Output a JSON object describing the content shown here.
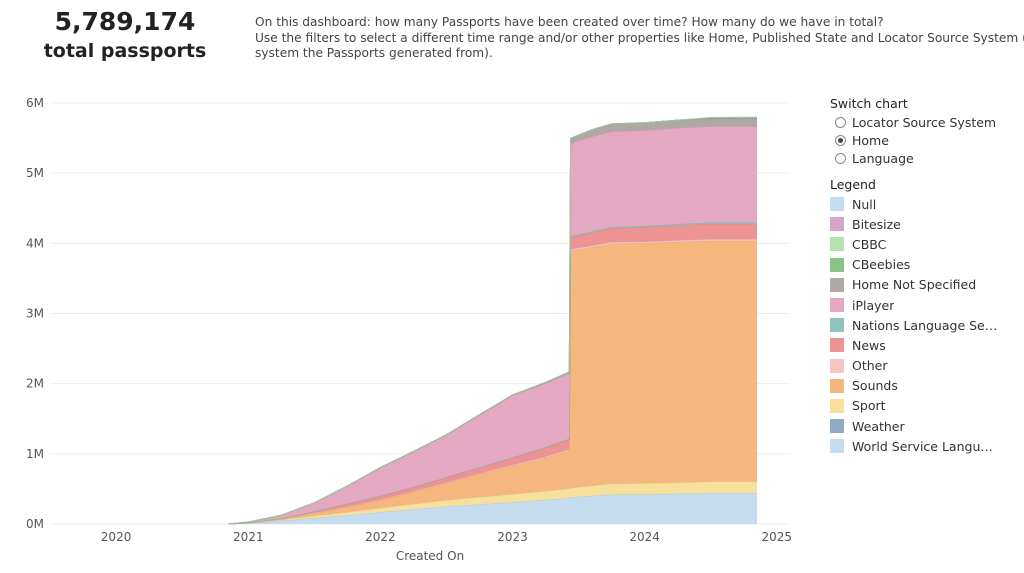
{
  "kpi": {
    "value": "5,789,174",
    "label": "total passports"
  },
  "description": {
    "line1": "On this dashboard: how many Passports have been created over time? How many do we have in total?",
    "line2": "Use the filters to select a different time range and/or other properties like Home, Published State and Locator Source System (i.e. the",
    "line3": "system the Passports generated from)."
  },
  "switch_chart": {
    "title": "Switch chart",
    "options": [
      {
        "label": "Locator Source System",
        "selected": false
      },
      {
        "label": "Home",
        "selected": true
      },
      {
        "label": "Language",
        "selected": false
      }
    ]
  },
  "legend": {
    "title": "Legend",
    "items": [
      {
        "label": "Null",
        "color": "#c5dcef"
      },
      {
        "label": "Bitesize",
        "color": "#d4a6c8"
      },
      {
        "label": "CBBC",
        "color": "#b5e0b0"
      },
      {
        "label": "CBeebies",
        "color": "#8cc28a"
      },
      {
        "label": "Home Not Specified",
        "color": "#b0a8a4"
      },
      {
        "label": "iPlayer",
        "color": "#e4a8c3"
      },
      {
        "label": "Nations Language Servi...",
        "color": "#8cc4bf"
      },
      {
        "label": "News",
        "color": "#ee9393"
      },
      {
        "label": "Other",
        "color": "#f8c5c2"
      },
      {
        "label": "Sounds",
        "color": "#f6b77e"
      },
      {
        "label": "Sport",
        "color": "#f6e09c"
      },
      {
        "label": "Weather",
        "color": "#91a8c6"
      },
      {
        "label": "World Service Languag...",
        "color": "#c5dcef"
      }
    ]
  },
  "chart_data": {
    "type": "area",
    "stacked": true,
    "xlabel": "Created On",
    "ylabel": "",
    "x_ticks": [
      "2020",
      "2021",
      "2022",
      "2023",
      "2024",
      "2025"
    ],
    "y_ticks": [
      "0M",
      "1M",
      "2M",
      "3M",
      "4M",
      "5M",
      "6M"
    ],
    "xlim": [
      2019.5,
      2025.1
    ],
    "ylim": [
      0,
      6000000
    ],
    "legend_position": "right",
    "grid": true,
    "x": [
      2020.85,
      2021.0,
      2021.25,
      2021.5,
      2021.75,
      2022.0,
      2022.25,
      2022.5,
      2022.75,
      2023.0,
      2023.25,
      2023.43,
      2023.44,
      2023.6,
      2023.75,
      2024.0,
      2024.25,
      2024.5,
      2024.85
    ],
    "series": [
      {
        "name": "World Service Languag...",
        "color": "#c5dcef",
        "values": [
          0,
          10000,
          45000,
          85000,
          125000,
          170000,
          210000,
          250000,
          280000,
          310000,
          345000,
          370000,
          380000,
          400000,
          420000,
          420000,
          430000,
          440000,
          440000
        ]
      },
      {
        "name": "Sport",
        "color": "#f6e09c",
        "values": [
          0,
          3000,
          15000,
          30000,
          45000,
          60000,
          75000,
          90000,
          105000,
          115000,
          125000,
          135000,
          135000,
          145000,
          155000,
          160000,
          160000,
          165000,
          165000
        ]
      },
      {
        "name": "Sounds",
        "color": "#f6b77e",
        "values": [
          0,
          2000,
          10000,
          40000,
          70000,
          110000,
          170000,
          240000,
          320000,
          400000,
          470000,
          540000,
          3380000,
          3400000,
          3420000,
          3420000,
          3430000,
          3430000,
          3430000
        ]
      },
      {
        "name": "Other",
        "color": "#f8c5c2",
        "values": [
          0,
          500,
          2000,
          4000,
          6000,
          8000,
          10000,
          12000,
          14000,
          16000,
          18000,
          20000,
          20000,
          20000,
          22000,
          22000,
          22000,
          22000,
          22000
        ]
      },
      {
        "name": "News",
        "color": "#ee9393",
        "values": [
          0,
          2000,
          10000,
          20000,
          40000,
          50000,
          60000,
          70000,
          85000,
          100000,
          125000,
          140000,
          170000,
          190000,
          200000,
          210000,
          215000,
          220000,
          220000
        ]
      },
      {
        "name": "Nations Language Servi...",
        "color": "#8cc4bf",
        "values": [
          0,
          0,
          500,
          1000,
          2000,
          3000,
          4000,
          5000,
          6000,
          8000,
          10000,
          12000,
          12000,
          15000,
          15000,
          17000,
          18000,
          20000,
          20000
        ]
      },
      {
        "name": "iPlayer",
        "color": "#e4a8c3",
        "values": [
          0,
          10000,
          40000,
          120000,
          250000,
          400000,
          500000,
          600000,
          740000,
          880000,
          910000,
          930000,
          1330000,
          1350000,
          1360000,
          1360000,
          1370000,
          1370000,
          1370000
        ]
      },
      {
        "name": "Home Not Specified",
        "color": "#b0a8a4",
        "values": [
          0,
          500,
          1000,
          2000,
          3000,
          4000,
          5000,
          6000,
          8000,
          10000,
          15000,
          20000,
          70000,
          100000,
          110000,
          110000,
          110000,
          110000,
          110000
        ]
      },
      {
        "name": "Weather",
        "color": "#91a8c6",
        "values": [
          0,
          0,
          0,
          0,
          0,
          0,
          0,
          0,
          0,
          0,
          0,
          0,
          0,
          0,
          0,
          0,
          2000,
          10000,
          12000
        ]
      },
      {
        "name": "CBeebies",
        "color": "#8cc28a",
        "values": [
          0,
          0,
          0,
          0,
          0,
          0,
          0,
          0,
          0,
          0,
          0,
          0,
          0,
          0,
          0,
          0,
          0,
          1000,
          5000
        ]
      },
      {
        "name": "CBBC",
        "color": "#b5e0b0",
        "values": [
          0,
          0,
          0,
          0,
          0,
          0,
          0,
          0,
          0,
          0,
          0,
          0,
          0,
          0,
          0,
          0,
          0,
          5000,
          5000
        ]
      },
      {
        "name": "Bitesize",
        "color": "#d4a6c8",
        "values": [
          0,
          0,
          0,
          0,
          0,
          0,
          0,
          0,
          0,
          0,
          0,
          0,
          0,
          0,
          0,
          0,
          0,
          0,
          0
        ]
      },
      {
        "name": "Null",
        "color": "#c5dcef",
        "values": [
          0,
          0,
          0,
          0,
          0,
          0,
          0,
          0,
          0,
          0,
          0,
          0,
          0,
          0,
          0,
          0,
          0,
          0,
          0
        ]
      }
    ]
  }
}
